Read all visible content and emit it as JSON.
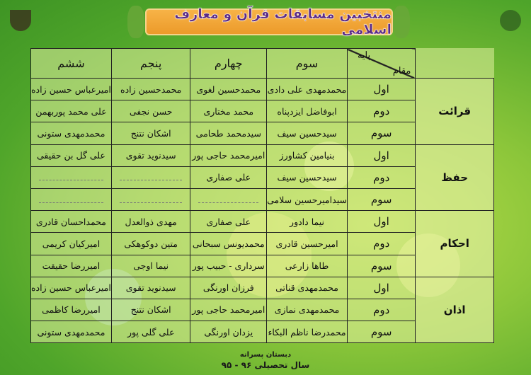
{
  "title": "منتخبین مسابقات قرآن و معارف اسلامی",
  "header": {
    "corner_bottom": "مقام",
    "corner_top": "پایه",
    "grades": [
      "سوم",
      "چهارم",
      "پنجم",
      "ششم"
    ]
  },
  "groups": [
    {
      "category": "قرائت",
      "rows": [
        {
          "rank": "اول",
          "names": [
            "محمدمهدی علی دادی",
            "محمدحسین لغوی",
            "محمدحسین زاده",
            "امیرعباس حسین زاده"
          ]
        },
        {
          "rank": "دوم",
          "names": [
            "ابوفاضل ایزدپناه",
            "محمد مختاری",
            "حسن نجفی",
            "علی محمد پوربهمن"
          ]
        },
        {
          "rank": "سوم",
          "names": [
            "سیدحسین سیف",
            "سیدمحمد طحامی",
            "اشکان نتنج",
            "محمدمهدی ستونی"
          ]
        }
      ]
    },
    {
      "category": "حفظ",
      "rows": [
        {
          "rank": "اول",
          "names": [
            "بنیامین کشاورز",
            "امیرمحمد حاجی پور",
            "سیدنوید تقوی",
            "علی گل بن حقیقی"
          ]
        },
        {
          "rank": "دوم",
          "names": [
            "سیدحسین سیف",
            "علی صفاری",
            "",
            ""
          ]
        },
        {
          "rank": "سوم",
          "names": [
            "سیدامیرحسین سلامی",
            "",
            "",
            ""
          ]
        }
      ]
    },
    {
      "category": "احکام",
      "rows": [
        {
          "rank": "اول",
          "names": [
            "نیما دادور",
            "علی صفاری",
            "مهدی ذوالعدل",
            "محمداحسان قادری"
          ]
        },
        {
          "rank": "دوم",
          "names": [
            "امیرحسین قادری",
            "محمدیونس سبحانی",
            "متین دوکوهکی",
            "امیرکیان کریمی"
          ]
        },
        {
          "rank": "سوم",
          "names": [
            "طاها زارعی",
            "سرداری - حبیب پور",
            "نیما اوجی",
            "امیررضا حقیقت"
          ]
        }
      ]
    },
    {
      "category": "اذان",
      "rows": [
        {
          "rank": "اول",
          "names": [
            "محمدمهدی قناتی",
            "فرزان اورنگی",
            "سیدنوید تقوی",
            "امیرعباس حسین زاده"
          ]
        },
        {
          "rank": "دوم",
          "names": [
            "محمدمهدی نمازی",
            "امیرمحمد حاجی پور",
            "اشکان نتنج",
            "امیررضا کاظمی"
          ]
        },
        {
          "rank": "سوم",
          "names": [
            "محمدرضا ناظم البکاء",
            "یزدان اورنگی",
            "علی گلی پور",
            "محمدمهدی ستونی"
          ]
        }
      ]
    }
  ],
  "footer": {
    "school": "دبستان پسرانه",
    "year": "سال تحصیلی ۹۶ - ۹۵"
  },
  "colors": {
    "banner": "#ec9a2a",
    "title_text": "#5b2a86",
    "background": "#8cc63a"
  }
}
